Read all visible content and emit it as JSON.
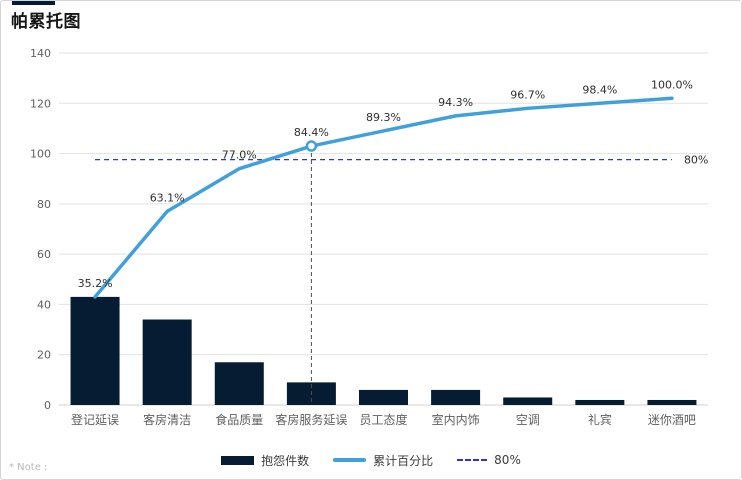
{
  "header": {
    "title": "帕累托图"
  },
  "footer": {
    "note": "* Note :"
  },
  "colors": {
    "bar": "#051c33",
    "line": "#41a0dc",
    "dash_80": "#3434c4",
    "vertical_guide": "#4d4d4d",
    "grid": "#e2e2e2",
    "axis_line": "#d0d0d0",
    "axis_text": "#5f5f5f",
    "data_label_text": "#2f2f2f",
    "marker_fill": "#ffffff"
  },
  "legend": {
    "items": [
      {
        "icon": "bar-swatch",
        "label": "抱怨件数"
      },
      {
        "icon": "line-swatch",
        "label": "累计百分比"
      },
      {
        "icon": "dash-swatch",
        "label": "80%"
      }
    ]
  },
  "chart_data": {
    "type": "bar",
    "subtype": "pareto (bar + cumulative line)",
    "title": "帕累托图",
    "categories": [
      "登记延误",
      "客房清洁",
      "食品质量",
      "客房服务延误",
      "员工态度",
      "室内内饰",
      "空调",
      "礼宾",
      "迷你酒吧"
    ],
    "series": [
      {
        "name": "抱怨件数",
        "type": "bar",
        "values": [
          43,
          34,
          17,
          9,
          6,
          6,
          3,
          2,
          2
        ]
      },
      {
        "name": "累计百分比",
        "type": "line",
        "cumulative_counts": [
          43,
          77,
          94,
          103,
          109,
          115,
          118,
          120,
          122
        ],
        "percent_labels": [
          "35.2%",
          "63.1%",
          "77.0%",
          "84.4%",
          "89.3%",
          "94.3%",
          "96.7%",
          "98.4%",
          "100.0%"
        ]
      }
    ],
    "total": 122,
    "reference_line": {
      "label": "80%",
      "percent": 80,
      "value_on_left_axis": 97.6
    },
    "highlight": {
      "category_index": 3,
      "marker": "open-circle",
      "vertical_guide": true
    },
    "y_axis": {
      "ticks": [
        0,
        20,
        40,
        60,
        80,
        100,
        120,
        140
      ],
      "max": 140
    },
    "xlabel": "",
    "ylabel": "",
    "grid": true,
    "legend_position": "bottom"
  }
}
